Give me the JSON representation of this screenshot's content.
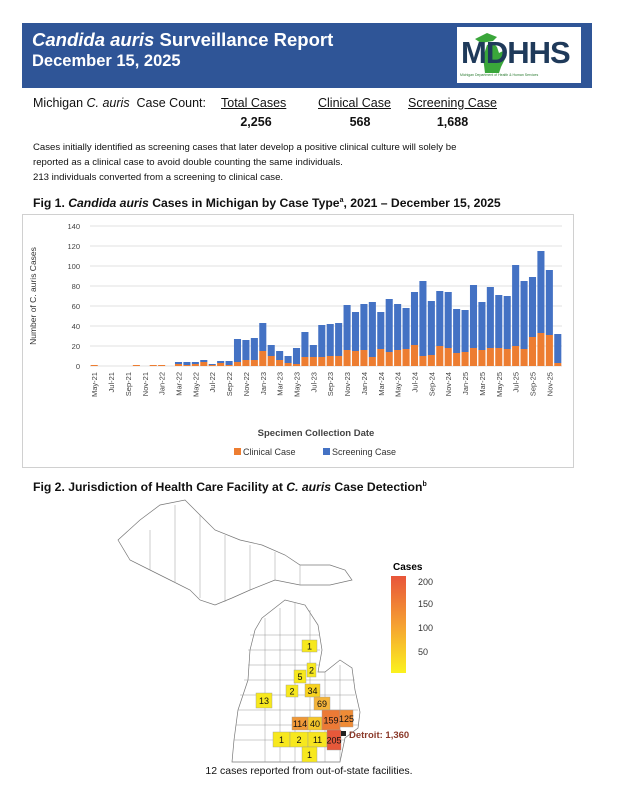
{
  "header": {
    "title_italic": "Candida auris",
    "title_rest": " Surveillance Report",
    "date": "December 15, 2025",
    "logo_text": "MDHHS",
    "logo_subtext": "Michigan Department of Health & Human Services"
  },
  "case_count": {
    "label_prefix": "Michigan ",
    "label_italic": "C. auris",
    "label_suffix": "  Case Count:",
    "columns": [
      {
        "header": "Total Cases",
        "value": "2,256"
      },
      {
        "header": "Clinical Case",
        "value": "568"
      },
      {
        "header": "Screening Case",
        "value": "1,688"
      }
    ]
  },
  "note": {
    "line1": "Cases initially identified as screening cases that later develop a positive clinical culture will solely be",
    "line2": "reported as a clinical case to avoid double counting the same individuals.",
    "line3": "213 individuals converted from a screening to clinical case."
  },
  "fig1": {
    "title_prefix": "Fig 1. ",
    "title_italic": "Candida auris",
    "title_rest": " Cases in Michigan by Case Type",
    "title_sup": "a",
    "title_end": ", 2021 –  December 15, 2025"
  },
  "chart_data": {
    "type": "bar",
    "stacked": true,
    "xlabel": "Specimen Collection Date",
    "ylabel": "Number of C. auris Cases",
    "ylim": [
      0,
      140
    ],
    "yticks": [
      0,
      20,
      40,
      60,
      80,
      100,
      120,
      140
    ],
    "grid": true,
    "legend_position": "bottom",
    "categories": [
      "May-21",
      "Jun-21",
      "Jul-21",
      "Aug-21",
      "Sep-21",
      "Oct-21",
      "Nov-21",
      "Dec-21",
      "Jan-22",
      "Feb-22",
      "Mar-22",
      "Apr-22",
      "May-22",
      "Jun-22",
      "Jul-22",
      "Aug-22",
      "Sep-22",
      "Oct-22",
      "Nov-22",
      "Dec-22",
      "Jan-23",
      "Feb-23",
      "Mar-23",
      "Apr-23",
      "May-23",
      "Jun-23",
      "Jul-23",
      "Aug-23",
      "Sep-23",
      "Oct-23",
      "Nov-23",
      "Dec-23",
      "Jan-24",
      "Feb-24",
      "Mar-24",
      "Apr-24",
      "May-24",
      "Jun-24",
      "Jul-24",
      "Aug-24",
      "Sep-24",
      "Oct-24",
      "Nov-24",
      "Dec-24",
      "Jan-25",
      "Feb-25",
      "Mar-25",
      "Apr-25",
      "May-25",
      "Jun-25",
      "Jul-25",
      "Aug-25",
      "Sep-25",
      "Oct-25",
      "Nov-25",
      "Dec-25"
    ],
    "tick_labels": [
      "May-21",
      "Jul-21",
      "Sep-21",
      "Nov-21",
      "Jan-22",
      "Mar-22",
      "May-22",
      "Jul-22",
      "Sep-22",
      "Nov-22",
      "Jan-23",
      "Mar-23",
      "May-23",
      "Jul-23",
      "Sep-23",
      "Nov-23",
      "Jan-24",
      "Mar-24",
      "May-24",
      "Jul-24",
      "Sep-24",
      "Nov-24",
      "Jan-25",
      "Mar-25",
      "May-25",
      "Jul-25",
      "Sep-25",
      "Nov-25"
    ],
    "series": [
      {
        "name": "Clinical Case",
        "color": "#ed7d31",
        "values": [
          1,
          0,
          0,
          0,
          0,
          1,
          0,
          1,
          1,
          0,
          2,
          1,
          2,
          4,
          1,
          3,
          1,
          4,
          6,
          6,
          15,
          10,
          6,
          3,
          2,
          9,
          9,
          9,
          10,
          10,
          16,
          15,
          16,
          9,
          17,
          14,
          16,
          17,
          21,
          10,
          11,
          20,
          18,
          13,
          14,
          18,
          16,
          18,
          18,
          17,
          20,
          17,
          29,
          33,
          31,
          3
        ]
      },
      {
        "name": "Screening Case",
        "color": "#4472c4",
        "values": [
          0,
          0,
          0,
          0,
          0,
          0,
          0,
          0,
          0,
          0,
          2,
          3,
          2,
          2,
          1,
          2,
          4,
          23,
          20,
          22,
          28,
          11,
          9,
          7,
          16,
          25,
          12,
          32,
          32,
          33,
          45,
          39,
          46,
          55,
          37,
          53,
          46,
          41,
          53,
          75,
          54,
          55,
          56,
          44,
          42,
          63,
          48,
          61,
          53,
          53,
          81,
          68,
          60,
          82,
          65,
          29
        ]
      }
    ]
  },
  "fig2": {
    "title_prefix": "Fig 2. Jurisdiction of Health Care Facility at ",
    "title_italic": "C. auris",
    "title_rest": " Case Detection",
    "title_sup": "b"
  },
  "map": {
    "legend_title": "Cases",
    "legend_ticks": [
      "200",
      "150",
      "100",
      "50"
    ],
    "counties": [
      {
        "label": "1",
        "color": "#f7e81e"
      },
      {
        "label": "2",
        "color": "#f7e81e"
      },
      {
        "label": "5",
        "color": "#f7e81e"
      },
      {
        "label": "2",
        "color": "#f7e81e"
      },
      {
        "label": "34",
        "color": "#f8d21f"
      },
      {
        "label": "13",
        "color": "#f7e81e"
      },
      {
        "label": "69",
        "color": "#f5b43a"
      },
      {
        "label": "114",
        "color": "#f09838"
      },
      {
        "label": "40",
        "color": "#f6c72a"
      },
      {
        "label": "159",
        "color": "#ec7a36"
      },
      {
        "label": "125",
        "color": "#ef8c36"
      },
      {
        "label": "1",
        "color": "#f7e81e"
      },
      {
        "label": "2",
        "color": "#f7e81e"
      },
      {
        "label": "11",
        "color": "#f7e41f"
      },
      {
        "label": "205",
        "color": "#e6583a"
      },
      {
        "label": "1",
        "color": "#f7e81e"
      }
    ],
    "detroit_label": "Detroit: 1,360",
    "caption": "12 cases reported from out-of-state facilities."
  }
}
